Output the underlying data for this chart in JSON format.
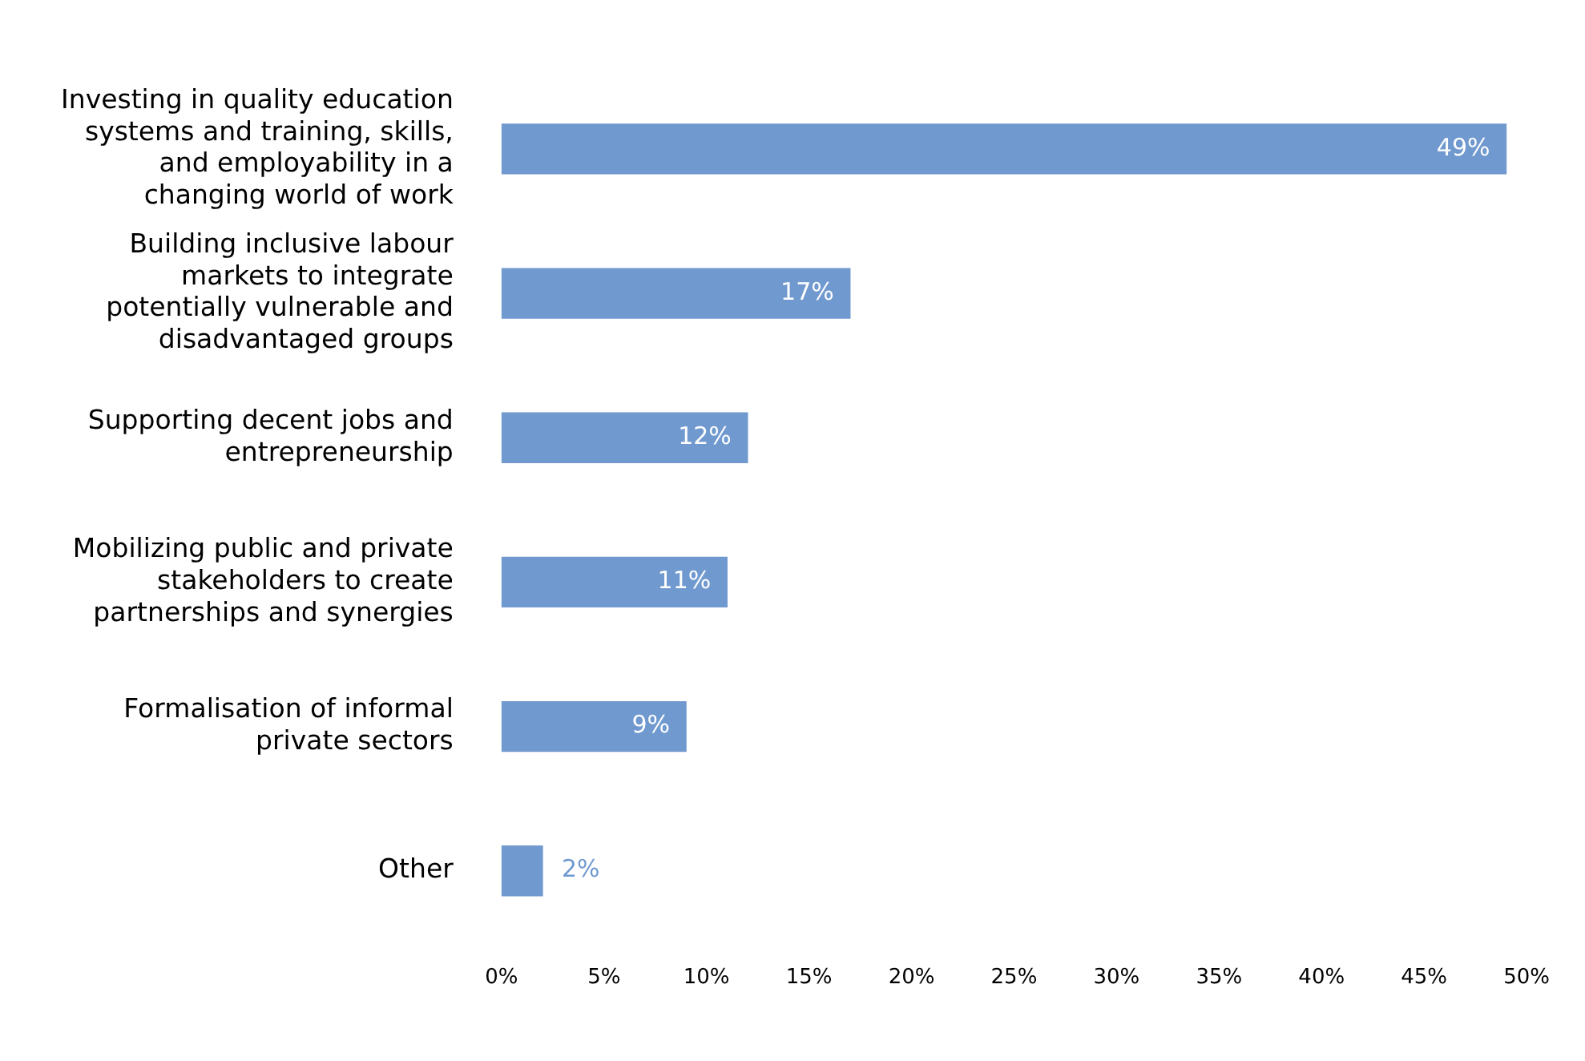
{
  "chart_data": {
    "type": "bar",
    "orientation": "horizontal",
    "categories": [
      "Investing in quality education systems and training, skills, and employability in a changing world of work",
      "Building inclusive labour markets to integrate potentially vulnerable and disadvantaged groups",
      "Supporting decent jobs and entrepreneurship",
      "Mobilizing public and private stakeholders to create partnerships and synergies",
      "Formalisation of informal private sectors",
      "Other"
    ],
    "values": [
      49,
      17,
      12,
      11,
      9,
      2
    ],
    "value_labels": [
      "49%",
      "17%",
      "12%",
      "11%",
      "9%",
      "2%"
    ],
    "color": "#7099cf",
    "xlim": [
      0,
      50
    ],
    "xticks": [
      {
        "value": 0,
        "label": "0%"
      },
      {
        "value": 5,
        "label": "5%"
      },
      {
        "value": 10,
        "label": "10%"
      },
      {
        "value": 15,
        "label": "15%"
      },
      {
        "value": 20,
        "label": "20%"
      },
      {
        "value": 25,
        "label": "25%"
      },
      {
        "value": 30,
        "label": "30%"
      },
      {
        "value": 35,
        "label": "35%"
      },
      {
        "value": 40,
        "label": "40%"
      },
      {
        "value": 45,
        "label": "45%"
      },
      {
        "value": 50,
        "label": "50%"
      }
    ],
    "grid": false,
    "legend": false
  }
}
